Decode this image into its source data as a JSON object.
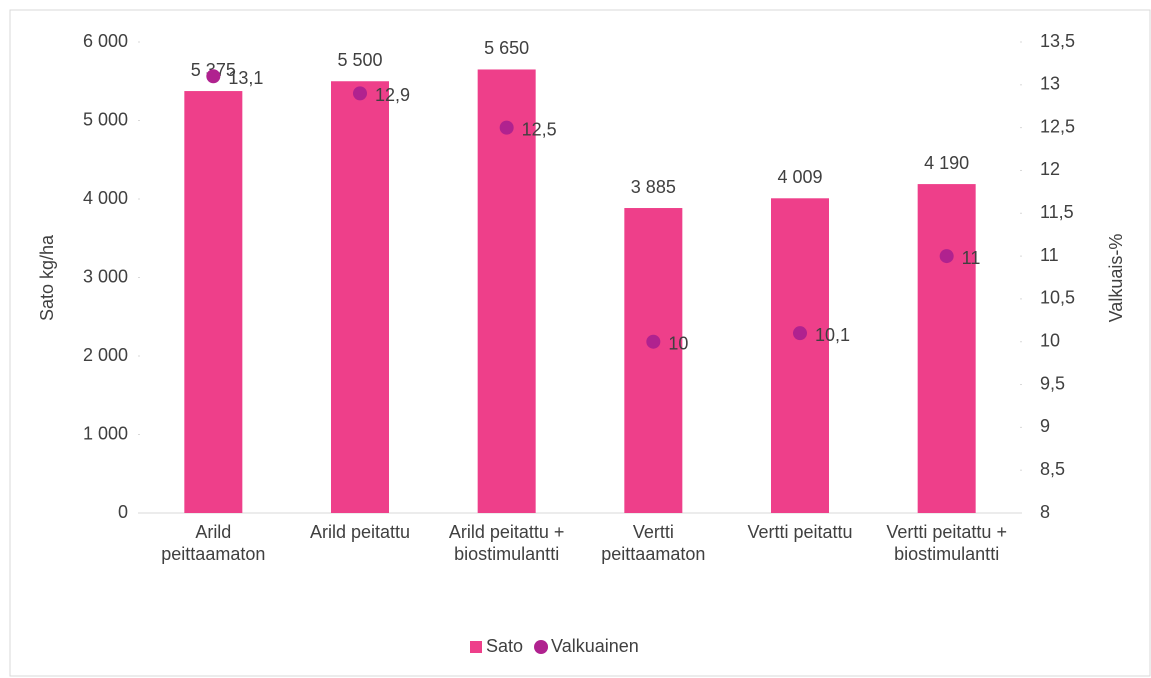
{
  "chart_data": {
    "type": "bar",
    "categories": [
      "Arild peittaamaton",
      "Arild peitattu",
      "Arild peitattu + biostimulantti",
      "Vertti peittaamaton",
      "Vertti peitattu",
      "Vertti peitattu + biostimulantti"
    ],
    "series": [
      {
        "name": "Sato",
        "type": "bar",
        "color": "#ee3f8a",
        "values": [
          5375,
          5500,
          5650,
          3885,
          4009,
          4190
        ],
        "value_labels": [
          "5 375",
          "5 500",
          "5 650",
          "3 885",
          "4 009",
          "4 190"
        ]
      },
      {
        "name": "Valkuainen",
        "type": "scatter",
        "axis": "y2",
        "color": "#b0228f",
        "values": [
          13.1,
          12.9,
          12.5,
          10,
          10.1,
          11
        ],
        "value_labels": [
          "13,1",
          "12,9",
          "12,5",
          "10",
          "10,1",
          "11"
        ]
      }
    ],
    "ylabel": "Sato kg/ha",
    "y2label": "Valkuais-%",
    "ylim": [
      0,
      6000
    ],
    "yticks": [
      0,
      {
        "value": 1000,
        "label": "1 000"
      },
      {
        "value": 2000,
        "label": "2 000"
      },
      {
        "value": 3000,
        "label": "3 000"
      },
      {
        "value": 4000,
        "label": "4 000"
      },
      {
        "value": 5000,
        "label": "5 000"
      },
      {
        "value": 6000,
        "label": "6 000"
      }
    ],
    "y2lim": [
      8,
      13.5
    ],
    "y2ticks": [
      8,
      {
        "value": 8.5,
        "label": "8,5"
      },
      9,
      {
        "value": 9.5,
        "label": "9,5"
      },
      10,
      {
        "value": 10.5,
        "label": "10,5"
      },
      11,
      {
        "value": 11.5,
        "label": "11,5"
      },
      12,
      {
        "value": 12.5,
        "label": "12,5"
      },
      13,
      {
        "value": 13.5,
        "label": "13,5"
      }
    ],
    "legend": "bottom"
  }
}
